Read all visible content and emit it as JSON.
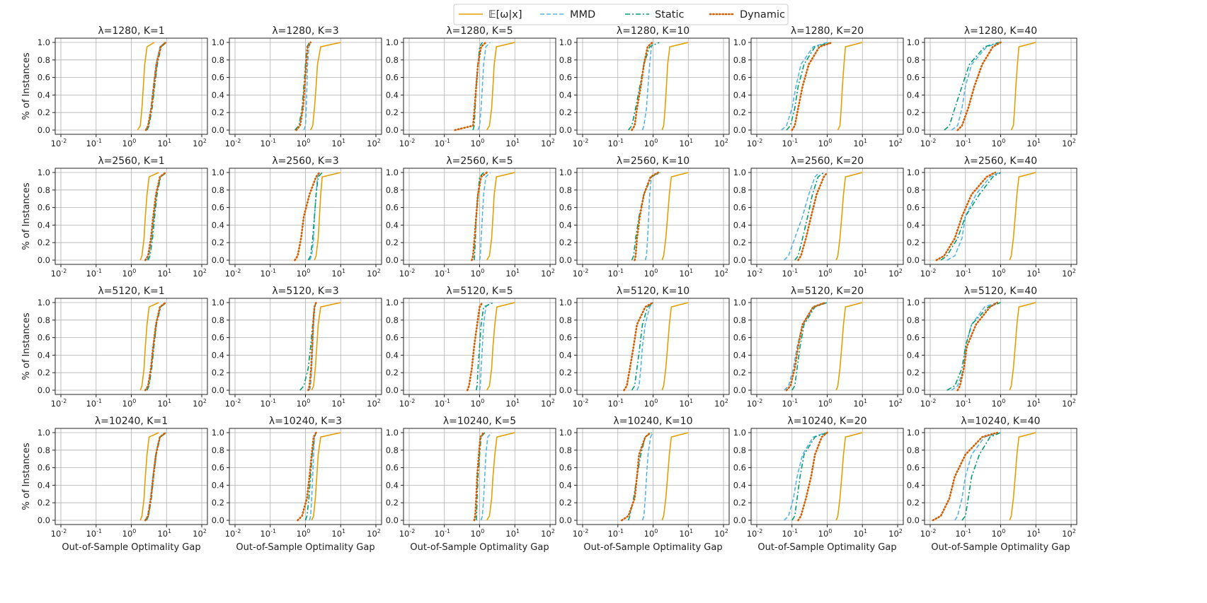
{
  "figure": {
    "xlabel": "Out-of-Sample Optimality Gap",
    "ylabel": "% of Instances",
    "xscale": "log",
    "xlim": [
      0.01,
      100
    ],
    "ylim": [
      0,
      1
    ],
    "yticks": [
      "0.0",
      "0.2",
      "0.4",
      "0.6",
      "0.8",
      "1.0"
    ],
    "xtick_exponents": [
      "-2",
      "-1",
      "0",
      "1",
      "2"
    ],
    "xtick_base": "10",
    "grid": true,
    "legend_position": "top-center"
  },
  "colors": {
    "expectation": "#e69f00",
    "mmd": "#56b4e9",
    "static": "#009e73",
    "dynamic": "#d55e00"
  },
  "legend": [
    {
      "key": "expectation",
      "label": "𝔼[ω|x]"
    },
    {
      "key": "mmd",
      "label": "MMD"
    },
    {
      "key": "static",
      "label": "Static"
    },
    {
      "key": "dynamic",
      "label": "Dynamic"
    }
  ],
  "chart_data": {
    "type": "line",
    "series_names": [
      "E[omega|x]",
      "MMD",
      "Static",
      "Dynamic"
    ],
    "curve_format": "empirical CDF: each series lists [q0, q5, q25, q50, q75, q95, q100] gap values at fractions [0, 0.05, 0.25, 0.5, 0.75, 0.95, 1.0]",
    "fractions": [
      0,
      0.05,
      0.25,
      0.5,
      0.75,
      0.95,
      1.0
    ],
    "panels": [
      {
        "title": "λ=1280, K=1",
        "lambda": 1280,
        "K": 1,
        "series": {
          "expectation": [
            1.5,
            1.8,
            2.0,
            2.2,
            2.4,
            2.8,
            4.5
          ],
          "mmd": [
            2.5,
            3.0,
            3.6,
            4.2,
            5.0,
            6.5,
            9.0
          ],
          "static": [
            2.8,
            3.2,
            3.9,
            4.6,
            5.5,
            7.0,
            10.0
          ],
          "dynamic": [
            2.6,
            3.0,
            3.7,
            4.4,
            5.2,
            6.8,
            9.5
          ]
        }
      },
      {
        "title": "λ=1280, K=3",
        "lambda": 1280,
        "K": 3,
        "series": {
          "expectation": [
            1.4,
            1.6,
            1.8,
            2.0,
            2.2,
            2.7,
            10.0
          ],
          "mmd": [
            0.9,
            1.0,
            1.05,
            1.1,
            1.15,
            1.25,
            1.4
          ],
          "static": [
            0.5,
            0.65,
            0.8,
            0.9,
            1.0,
            1.1,
            1.3
          ],
          "dynamic": [
            0.55,
            0.7,
            0.85,
            0.95,
            1.05,
            1.15,
            1.4
          ]
        }
      },
      {
        "title": "λ=1280, K=5",
        "lambda": 1280,
        "K": 5,
        "series": {
          "expectation": [
            1.6,
            1.9,
            2.2,
            2.4,
            2.6,
            3.0,
            10.0
          ],
          "mmd": [
            0.9,
            1.0,
            1.1,
            1.2,
            1.3,
            1.5,
            2.0
          ],
          "static": [
            0.65,
            0.7,
            0.75,
            0.8,
            0.9,
            1.0,
            1.2
          ],
          "dynamic": [
            0.2,
            0.65,
            0.72,
            0.8,
            0.9,
            1.1,
            1.5
          ]
        }
      },
      {
        "title": "λ=1280, K=10",
        "lambda": 1280,
        "K": 10,
        "series": {
          "expectation": [
            1.8,
            2.0,
            2.2,
            2.4,
            2.6,
            3.0,
            10.0
          ],
          "mmd": [
            0.5,
            0.55,
            0.65,
            0.72,
            0.8,
            0.9,
            1.0
          ],
          "static": [
            0.2,
            0.25,
            0.32,
            0.42,
            0.55,
            0.8,
            1.5
          ],
          "dynamic": [
            0.25,
            0.3,
            0.35,
            0.45,
            0.55,
            0.7,
            0.95
          ]
        }
      },
      {
        "title": "λ=1280, K=20",
        "lambda": 1280,
        "K": 20,
        "series": {
          "expectation": [
            2.0,
            2.3,
            2.5,
            2.7,
            3.0,
            3.3,
            10.0
          ],
          "mmd": [
            0.05,
            0.07,
            0.1,
            0.13,
            0.18,
            0.4,
            1.0
          ],
          "static": [
            0.07,
            0.09,
            0.12,
            0.15,
            0.22,
            0.45,
            1.3
          ],
          "dynamic": [
            0.1,
            0.12,
            0.15,
            0.2,
            0.3,
            0.6,
            1.4
          ]
        }
      },
      {
        "title": "λ=1280, K=40",
        "lambda": 1280,
        "K": 40,
        "series": {
          "expectation": [
            2.0,
            2.3,
            2.5,
            2.7,
            3.0,
            3.3,
            10.0
          ],
          "mmd": [
            0.04,
            0.06,
            0.08,
            0.1,
            0.15,
            0.4,
            1.0
          ],
          "static": [
            0.025,
            0.035,
            0.05,
            0.08,
            0.13,
            0.35,
            0.9
          ],
          "dynamic": [
            0.06,
            0.08,
            0.12,
            0.18,
            0.3,
            0.6,
            1.0
          ]
        }
      },
      {
        "title": "λ=2560, K=1",
        "lambda": 2560,
        "K": 1,
        "series": {
          "expectation": [
            1.8,
            2.0,
            2.3,
            2.5,
            2.8,
            3.2,
            6.0
          ],
          "mmd": [
            2.8,
            3.2,
            3.8,
            4.4,
            5.2,
            6.5,
            9.0
          ],
          "static": [
            3.0,
            3.4,
            4.0,
            4.6,
            5.4,
            6.8,
            10.0
          ],
          "dynamic": [
            2.5,
            3.0,
            3.6,
            4.2,
            5.0,
            6.5,
            9.5
          ]
        }
      },
      {
        "title": "λ=2560, K=3",
        "lambda": 2560,
        "K": 3,
        "series": {
          "expectation": [
            1.8,
            2.0,
            2.3,
            2.5,
            2.7,
            3.0,
            10.0
          ],
          "mmd": [
            1.3,
            1.5,
            1.7,
            1.8,
            2.0,
            2.2,
            2.5
          ],
          "static": [
            1.2,
            1.4,
            1.6,
            1.8,
            2.0,
            2.3,
            3.0
          ],
          "dynamic": [
            0.5,
            0.6,
            0.75,
            0.9,
            1.3,
            2.0,
            2.5
          ]
        }
      },
      {
        "title": "λ=2560, K=5",
        "lambda": 2560,
        "K": 5,
        "series": {
          "expectation": [
            1.6,
            1.9,
            2.2,
            2.4,
            2.6,
            3.0,
            10.0
          ],
          "mmd": [
            1.0,
            1.05,
            1.1,
            1.2,
            1.3,
            1.5,
            2.0
          ],
          "static": [
            0.7,
            0.72,
            0.76,
            0.8,
            0.9,
            1.0,
            1.3
          ],
          "dynamic": [
            0.6,
            0.65,
            0.72,
            0.8,
            0.9,
            1.1,
            1.6
          ]
        }
      },
      {
        "title": "λ=2560, K=10",
        "lambda": 2560,
        "K": 10,
        "series": {
          "expectation": [
            1.8,
            2.0,
            2.3,
            2.6,
            2.9,
            3.3,
            10.0
          ],
          "mmd": [
            0.6,
            0.65,
            0.7,
            0.75,
            0.8,
            0.9,
            1.5
          ],
          "static": [
            0.25,
            0.28,
            0.32,
            0.4,
            0.55,
            0.9,
            1.6
          ],
          "dynamic": [
            0.3,
            0.32,
            0.35,
            0.42,
            0.55,
            0.85,
            1.4
          ]
        }
      },
      {
        "title": "λ=2560, K=20",
        "lambda": 2560,
        "K": 20,
        "series": {
          "expectation": [
            1.8,
            2.0,
            2.3,
            2.6,
            2.9,
            3.3,
            10.0
          ],
          "mmd": [
            0.06,
            0.08,
            0.12,
            0.2,
            0.3,
            0.45,
            0.6
          ],
          "static": [
            0.12,
            0.15,
            0.2,
            0.28,
            0.38,
            0.55,
            0.8
          ],
          "dynamic": [
            0.15,
            0.18,
            0.25,
            0.35,
            0.5,
            0.8,
            1.0
          ]
        }
      },
      {
        "title": "λ=2560, K=40",
        "lambda": 2560,
        "K": 40,
        "series": {
          "expectation": [
            1.8,
            2.0,
            2.3,
            2.6,
            2.9,
            3.3,
            10.0
          ],
          "mmd": [
            0.03,
            0.05,
            0.08,
            0.1,
            0.2,
            0.5,
            0.9
          ],
          "static": [
            0.02,
            0.03,
            0.06,
            0.1,
            0.25,
            0.6,
            1.0
          ],
          "dynamic": [
            0.015,
            0.025,
            0.05,
            0.08,
            0.15,
            0.4,
            0.7
          ]
        }
      },
      {
        "title": "λ=5120, K=1",
        "lambda": 5120,
        "K": 1,
        "series": {
          "expectation": [
            1.8,
            2.0,
            2.3,
            2.5,
            2.8,
            3.2,
            6.0
          ],
          "mmd": [
            2.6,
            3.0,
            3.6,
            4.2,
            5.0,
            6.5,
            9.0
          ],
          "static": [
            2.8,
            3.2,
            3.8,
            4.4,
            5.2,
            6.8,
            10.0
          ],
          "dynamic": [
            2.5,
            3.0,
            3.6,
            4.2,
            5.0,
            6.5,
            9.5
          ]
        }
      },
      {
        "title": "λ=5120, K=3",
        "lambda": 5120,
        "K": 3,
        "series": {
          "expectation": [
            1.5,
            1.7,
            1.9,
            2.1,
            2.3,
            2.7,
            10.0
          ],
          "mmd": [
            1.3,
            1.4,
            1.5,
            1.6,
            1.7,
            1.8,
            2.0
          ],
          "static": [
            0.7,
            0.9,
            1.2,
            1.4,
            1.6,
            1.8,
            2.0
          ],
          "dynamic": [
            1.2,
            1.3,
            1.45,
            1.55,
            1.65,
            1.8,
            2.0
          ]
        }
      },
      {
        "title": "λ=5120, K=5",
        "lambda": 5120,
        "K": 5,
        "series": {
          "expectation": [
            1.6,
            1.9,
            2.2,
            2.4,
            2.7,
            3.1,
            10.0
          ],
          "mmd": [
            1.0,
            1.05,
            1.1,
            1.2,
            1.3,
            1.5,
            2.0
          ],
          "static": [
            0.8,
            0.85,
            0.9,
            1.0,
            1.1,
            1.3,
            2.5
          ],
          "dynamic": [
            0.45,
            0.5,
            0.6,
            0.7,
            0.85,
            1.0,
            1.2
          ]
        }
      },
      {
        "title": "λ=5120, K=10",
        "lambda": 5120,
        "K": 10,
        "series": {
          "expectation": [
            1.8,
            2.0,
            2.3,
            2.6,
            2.9,
            3.3,
            10.0
          ],
          "mmd": [
            0.35,
            0.4,
            0.45,
            0.5,
            0.6,
            0.8,
            1.0
          ],
          "static": [
            0.25,
            0.3,
            0.35,
            0.42,
            0.5,
            0.7,
            1.0
          ],
          "dynamic": [
            0.15,
            0.18,
            0.22,
            0.28,
            0.35,
            0.6,
            1.0
          ]
        }
      },
      {
        "title": "λ=5120, K=20",
        "lambda": 5120,
        "K": 20,
        "series": {
          "expectation": [
            1.8,
            2.0,
            2.3,
            2.6,
            2.9,
            3.3,
            10.0
          ],
          "mmd": [
            0.06,
            0.08,
            0.11,
            0.14,
            0.2,
            0.4,
            0.9
          ],
          "static": [
            0.1,
            0.12,
            0.14,
            0.17,
            0.22,
            0.45,
            1.0
          ],
          "dynamic": [
            0.07,
            0.09,
            0.12,
            0.15,
            0.2,
            0.4,
            0.9
          ]
        }
      },
      {
        "title": "λ=5120, K=40",
        "lambda": 5120,
        "K": 40,
        "series": {
          "expectation": [
            1.8,
            2.0,
            2.3,
            2.6,
            2.9,
            3.3,
            10.0
          ],
          "mmd": [
            0.04,
            0.06,
            0.09,
            0.1,
            0.15,
            0.35,
            0.8
          ],
          "static": [
            0.03,
            0.05,
            0.08,
            0.1,
            0.15,
            0.45,
            1.0
          ],
          "dynamic": [
            0.06,
            0.07,
            0.09,
            0.11,
            0.2,
            0.5,
            0.8
          ]
        }
      },
      {
        "title": "λ=10240, K=1",
        "lambda": 10240,
        "K": 1,
        "series": {
          "expectation": [
            1.8,
            2.0,
            2.3,
            2.5,
            2.8,
            3.2,
            6.0
          ],
          "mmd": [
            2.5,
            2.9,
            3.5,
            4.1,
            4.9,
            6.3,
            9.0
          ],
          "static": [
            2.7,
            3.1,
            3.7,
            4.3,
            5.1,
            6.6,
            10.0
          ],
          "dynamic": [
            2.5,
            3.0,
            3.6,
            4.2,
            5.0,
            6.5,
            9.5
          ]
        }
      },
      {
        "title": "λ=10240, K=3",
        "lambda": 10240,
        "K": 3,
        "series": {
          "expectation": [
            1.5,
            1.7,
            1.9,
            2.1,
            2.3,
            2.7,
            10.0
          ],
          "mmd": [
            1.3,
            1.4,
            1.5,
            1.6,
            1.7,
            1.8,
            2.0
          ],
          "static": [
            1.0,
            1.1,
            1.25,
            1.4,
            1.55,
            1.8,
            2.0
          ],
          "dynamic": [
            0.6,
            0.8,
            1.1,
            1.3,
            1.5,
            1.7,
            2.0
          ]
        }
      },
      {
        "title": "λ=10240, K=5",
        "lambda": 10240,
        "K": 5,
        "series": {
          "expectation": [
            1.6,
            1.9,
            2.2,
            2.4,
            2.7,
            3.1,
            10.0
          ],
          "mmd": [
            1.1,
            1.2,
            1.3,
            1.4,
            1.5,
            1.7,
            2.2
          ],
          "static": [
            0.8,
            0.82,
            0.85,
            0.9,
            1.0,
            1.1,
            1.4
          ],
          "dynamic": [
            0.7,
            0.75,
            0.8,
            0.85,
            0.95,
            1.05,
            1.3
          ]
        }
      },
      {
        "title": "λ=10240, K=10",
        "lambda": 10240,
        "K": 10,
        "series": {
          "expectation": [
            1.8,
            2.0,
            2.3,
            2.6,
            2.9,
            3.3,
            10.0
          ],
          "mmd": [
            0.5,
            0.55,
            0.6,
            0.65,
            0.72,
            0.85,
            1.0
          ],
          "static": [
            0.2,
            0.22,
            0.28,
            0.35,
            0.45,
            0.6,
            0.9
          ],
          "dynamic": [
            0.13,
            0.2,
            0.3,
            0.35,
            0.4,
            0.6,
            0.85
          ]
        }
      },
      {
        "title": "λ=10240, K=20",
        "lambda": 10240,
        "K": 20,
        "series": {
          "expectation": [
            1.8,
            2.0,
            2.3,
            2.6,
            2.9,
            3.3,
            10.0
          ],
          "mmd": [
            0.06,
            0.08,
            0.11,
            0.14,
            0.2,
            0.4,
            0.9
          ],
          "static": [
            0.1,
            0.12,
            0.14,
            0.17,
            0.22,
            0.45,
            1.0
          ],
          "dynamic": [
            0.15,
            0.18,
            0.25,
            0.35,
            0.45,
            0.7,
            1.0
          ]
        }
      },
      {
        "title": "λ=10240, K=40",
        "lambda": 10240,
        "K": 40,
        "series": {
          "expectation": [
            1.8,
            2.0,
            2.3,
            2.6,
            2.9,
            3.3,
            10.0
          ],
          "mmd": [
            0.05,
            0.06,
            0.08,
            0.1,
            0.15,
            0.35,
            1.0
          ],
          "static": [
            0.08,
            0.1,
            0.12,
            0.15,
            0.25,
            0.5,
            1.0
          ],
          "dynamic": [
            0.012,
            0.02,
            0.035,
            0.05,
            0.1,
            0.3,
            0.8
          ]
        }
      }
    ]
  }
}
